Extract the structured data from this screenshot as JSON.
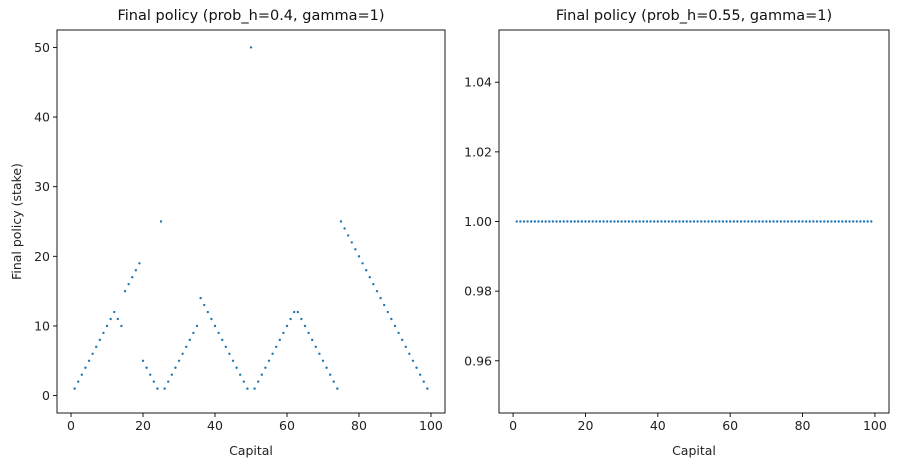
{
  "chart_data": [
    {
      "type": "scatter",
      "title": "Final policy (prob_h=0.4, gamma=1)",
      "xlabel": "Capital",
      "ylabel": "Final policy (stake)",
      "xlim": [
        -3.9,
        103.9
      ],
      "ylim": [
        -2.5,
        52.5
      ],
      "xticks": [
        "0",
        "20",
        "40",
        "60",
        "80",
        "100"
      ],
      "xtick_values": [
        0,
        20,
        40,
        60,
        80,
        100
      ],
      "yticks": [
        "0",
        "10",
        "20",
        "30",
        "40",
        "50"
      ],
      "ytick_values": [
        0,
        10,
        20,
        30,
        40,
        50
      ],
      "marker_color": "#1f77b4",
      "x": [
        1,
        2,
        3,
        4,
        5,
        6,
        7,
        8,
        9,
        10,
        11,
        12,
        13,
        14,
        15,
        16,
        17,
        18,
        19,
        20,
        21,
        22,
        23,
        24,
        25,
        26,
        27,
        28,
        29,
        30,
        31,
        32,
        33,
        34,
        35,
        36,
        37,
        38,
        39,
        40,
        41,
        42,
        43,
        44,
        45,
        46,
        47,
        48,
        49,
        50,
        51,
        52,
        53,
        54,
        55,
        56,
        57,
        58,
        59,
        60,
        61,
        62,
        63,
        64,
        65,
        66,
        67,
        68,
        69,
        70,
        71,
        72,
        73,
        74,
        75,
        76,
        77,
        78,
        79,
        80,
        81,
        82,
        83,
        84,
        85,
        86,
        87,
        88,
        89,
        90,
        91,
        92,
        93,
        94,
        95,
        96,
        97,
        98,
        99
      ],
      "y": [
        1,
        2,
        3,
        4,
        5,
        6,
        7,
        8,
        9,
        10,
        11,
        12,
        11,
        10,
        15,
        16,
        17,
        18,
        19,
        5,
        4,
        3,
        2,
        1,
        25,
        1,
        2,
        3,
        4,
        5,
        6,
        7,
        8,
        9,
        10,
        14,
        13,
        12,
        11,
        10,
        9,
        8,
        7,
        6,
        5,
        4,
        3,
        2,
        1,
        50,
        1,
        2,
        3,
        4,
        5,
        6,
        7,
        8,
        9,
        10,
        11,
        12,
        12,
        11,
        10,
        9,
        8,
        7,
        6,
        5,
        4,
        3,
        2,
        1,
        25,
        24,
        23,
        22,
        21,
        20,
        19,
        18,
        17,
        16,
        15,
        14,
        13,
        12,
        11,
        10,
        9,
        8,
        7,
        6,
        5,
        4,
        3,
        2,
        1
      ]
    },
    {
      "type": "scatter",
      "title": "Final policy (prob_h=0.55, gamma=1)",
      "xlabel": "Capital",
      "ylabel": "",
      "xlim": [
        -3.9,
        103.9
      ],
      "ylim": [
        0.945,
        1.055
      ],
      "xticks": [
        "0",
        "20",
        "40",
        "60",
        "80",
        "100"
      ],
      "xtick_values": [
        0,
        20,
        40,
        60,
        80,
        100
      ],
      "yticks": [
        "0.96",
        "0.98",
        "1.00",
        "1.02",
        "1.04"
      ],
      "ytick_values": [
        0.96,
        0.98,
        1.0,
        1.02,
        1.04
      ],
      "marker_color": "#1f77b4",
      "x": [
        1,
        2,
        3,
        4,
        5,
        6,
        7,
        8,
        9,
        10,
        11,
        12,
        13,
        14,
        15,
        16,
        17,
        18,
        19,
        20,
        21,
        22,
        23,
        24,
        25,
        26,
        27,
        28,
        29,
        30,
        31,
        32,
        33,
        34,
        35,
        36,
        37,
        38,
        39,
        40,
        41,
        42,
        43,
        44,
        45,
        46,
        47,
        48,
        49,
        50,
        51,
        52,
        53,
        54,
        55,
        56,
        57,
        58,
        59,
        60,
        61,
        62,
        63,
        64,
        65,
        66,
        67,
        68,
        69,
        70,
        71,
        72,
        73,
        74,
        75,
        76,
        77,
        78,
        79,
        80,
        81,
        82,
        83,
        84,
        85,
        86,
        87,
        88,
        89,
        90,
        91,
        92,
        93,
        94,
        95,
        96,
        97,
        98,
        99
      ],
      "y": [
        1,
        1,
        1,
        1,
        1,
        1,
        1,
        1,
        1,
        1,
        1,
        1,
        1,
        1,
        1,
        1,
        1,
        1,
        1,
        1,
        1,
        1,
        1,
        1,
        1,
        1,
        1,
        1,
        1,
        1,
        1,
        1,
        1,
        1,
        1,
        1,
        1,
        1,
        1,
        1,
        1,
        1,
        1,
        1,
        1,
        1,
        1,
        1,
        1,
        1,
        1,
        1,
        1,
        1,
        1,
        1,
        1,
        1,
        1,
        1,
        1,
        1,
        1,
        1,
        1,
        1,
        1,
        1,
        1,
        1,
        1,
        1,
        1,
        1,
        1,
        1,
        1,
        1,
        1,
        1,
        1,
        1,
        1,
        1,
        1,
        1,
        1,
        1,
        1,
        1,
        1,
        1,
        1,
        1,
        1,
        1,
        1,
        1,
        1
      ]
    }
  ]
}
